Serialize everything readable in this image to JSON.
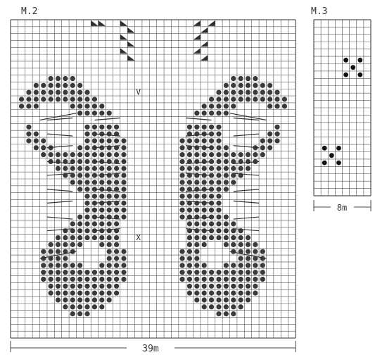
{
  "charts": [
    {
      "label": "M.2",
      "width_label": "39m",
      "columns": 39,
      "rows": 46,
      "dots": [
        [
          5,
          8
        ],
        [
          6,
          8
        ],
        [
          7,
          8
        ],
        [
          8,
          8
        ],
        [
          3,
          9
        ],
        [
          4,
          9
        ],
        [
          5,
          9
        ],
        [
          6,
          9
        ],
        [
          7,
          9
        ],
        [
          8,
          9
        ],
        [
          9,
          9
        ],
        [
          2,
          10
        ],
        [
          3,
          10
        ],
        [
          4,
          10
        ],
        [
          5,
          10
        ],
        [
          6,
          10
        ],
        [
          7,
          10
        ],
        [
          8,
          10
        ],
        [
          9,
          10
        ],
        [
          10,
          10
        ],
        [
          1,
          11
        ],
        [
          2,
          11
        ],
        [
          3,
          11
        ],
        [
          4,
          11
        ],
        [
          5,
          11
        ],
        [
          6,
          11
        ],
        [
          7,
          11
        ],
        [
          8,
          11
        ],
        [
          9,
          11
        ],
        [
          10,
          11
        ],
        [
          11,
          11
        ],
        [
          1,
          12
        ],
        [
          2,
          12
        ],
        [
          3,
          12
        ],
        [
          8,
          12
        ],
        [
          9,
          12
        ],
        [
          10,
          12
        ],
        [
          11,
          12
        ],
        [
          12,
          12
        ],
        [
          9,
          13
        ],
        [
          10,
          13
        ],
        [
          11,
          13
        ],
        [
          12,
          13
        ],
        [
          13,
          13
        ],
        [
          2,
          15
        ],
        [
          10,
          15
        ],
        [
          11,
          15
        ],
        [
          12,
          15
        ],
        [
          13,
          15
        ],
        [
          14,
          15
        ],
        [
          2,
          16
        ],
        [
          3,
          16
        ],
        [
          10,
          16
        ],
        [
          11,
          16
        ],
        [
          12,
          16
        ],
        [
          13,
          16
        ],
        [
          14,
          16
        ],
        [
          2,
          17
        ],
        [
          3,
          17
        ],
        [
          4,
          17
        ],
        [
          10,
          17
        ],
        [
          11,
          17
        ],
        [
          12,
          17
        ],
        [
          13,
          17
        ],
        [
          14,
          17
        ],
        [
          15,
          17
        ],
        [
          3,
          18
        ],
        [
          4,
          18
        ],
        [
          5,
          18
        ],
        [
          9,
          18
        ],
        [
          10,
          18
        ],
        [
          11,
          18
        ],
        [
          12,
          18
        ],
        [
          13,
          18
        ],
        [
          14,
          18
        ],
        [
          15,
          18
        ],
        [
          4,
          19
        ],
        [
          5,
          19
        ],
        [
          6,
          19
        ],
        [
          7,
          19
        ],
        [
          8,
          19
        ],
        [
          9,
          19
        ],
        [
          10,
          19
        ],
        [
          11,
          19
        ],
        [
          12,
          19
        ],
        [
          13,
          19
        ],
        [
          14,
          19
        ],
        [
          15,
          19
        ],
        [
          5,
          20
        ],
        [
          6,
          20
        ],
        [
          7,
          20
        ],
        [
          8,
          20
        ],
        [
          9,
          20
        ],
        [
          10,
          20
        ],
        [
          11,
          20
        ],
        [
          12,
          20
        ],
        [
          13,
          20
        ],
        [
          14,
          20
        ],
        [
          15,
          20
        ],
        [
          6,
          21
        ],
        [
          7,
          21
        ],
        [
          8,
          21
        ],
        [
          9,
          21
        ],
        [
          10,
          21
        ],
        [
          11,
          21
        ],
        [
          12,
          21
        ],
        [
          13,
          21
        ],
        [
          14,
          21
        ],
        [
          15,
          21
        ],
        [
          7,
          22
        ],
        [
          8,
          22
        ],
        [
          9,
          22
        ],
        [
          10,
          22
        ],
        [
          11,
          22
        ],
        [
          12,
          22
        ],
        [
          13,
          22
        ],
        [
          14,
          22
        ],
        [
          15,
          22
        ],
        [
          8,
          23
        ],
        [
          9,
          23
        ],
        [
          10,
          23
        ],
        [
          11,
          23
        ],
        [
          12,
          23
        ],
        [
          13,
          23
        ],
        [
          14,
          23
        ],
        [
          15,
          23
        ],
        [
          9,
          24
        ],
        [
          10,
          24
        ],
        [
          11,
          24
        ],
        [
          12,
          24
        ],
        [
          13,
          24
        ],
        [
          14,
          24
        ],
        [
          15,
          24
        ],
        [
          10,
          25
        ],
        [
          11,
          25
        ],
        [
          12,
          25
        ],
        [
          13,
          25
        ],
        [
          14,
          25
        ],
        [
          15,
          25
        ],
        [
          10,
          26
        ],
        [
          11,
          26
        ],
        [
          12,
          26
        ],
        [
          13,
          26
        ],
        [
          14,
          26
        ],
        [
          15,
          26
        ],
        [
          10,
          27
        ],
        [
          11,
          27
        ],
        [
          12,
          27
        ],
        [
          13,
          27
        ],
        [
          14,
          27
        ],
        [
          15,
          27
        ],
        [
          9,
          28
        ],
        [
          10,
          28
        ],
        [
          11,
          28
        ],
        [
          12,
          28
        ],
        [
          13,
          28
        ],
        [
          14,
          28
        ],
        [
          15,
          28
        ],
        [
          8,
          29
        ],
        [
          9,
          29
        ],
        [
          10,
          29
        ],
        [
          11,
          29
        ],
        [
          12,
          29
        ],
        [
          13,
          29
        ],
        [
          14,
          29
        ],
        [
          7,
          30
        ],
        [
          8,
          30
        ],
        [
          9,
          30
        ],
        [
          10,
          30
        ],
        [
          11,
          30
        ],
        [
          12,
          30
        ],
        [
          13,
          30
        ],
        [
          14,
          30
        ],
        [
          6,
          31
        ],
        [
          7,
          31
        ],
        [
          8,
          31
        ],
        [
          9,
          31
        ],
        [
          10,
          31
        ],
        [
          11,
          31
        ],
        [
          12,
          31
        ],
        [
          13,
          31
        ],
        [
          14,
          31
        ],
        [
          5,
          32
        ],
        [
          6,
          32
        ],
        [
          7,
          32
        ],
        [
          8,
          32
        ],
        [
          9,
          32
        ],
        [
          12,
          32
        ],
        [
          13,
          32
        ],
        [
          14,
          32
        ],
        [
          4,
          33
        ],
        [
          5,
          33
        ],
        [
          6,
          33
        ],
        [
          7,
          33
        ],
        [
          8,
          33
        ],
        [
          13,
          33
        ],
        [
          14,
          33
        ],
        [
          15,
          33
        ],
        [
          4,
          34
        ],
        [
          5,
          34
        ],
        [
          6,
          34
        ],
        [
          7,
          34
        ],
        [
          13,
          34
        ],
        [
          14,
          34
        ],
        [
          15,
          34
        ],
        [
          4,
          35
        ],
        [
          5,
          35
        ],
        [
          6,
          35
        ],
        [
          7,
          35
        ],
        [
          8,
          35
        ],
        [
          9,
          35
        ],
        [
          12,
          35
        ],
        [
          13,
          35
        ],
        [
          14,
          35
        ],
        [
          15,
          35
        ],
        [
          4,
          36
        ],
        [
          5,
          36
        ],
        [
          6,
          36
        ],
        [
          7,
          36
        ],
        [
          8,
          36
        ],
        [
          9,
          36
        ],
        [
          10,
          36
        ],
        [
          11,
          36
        ],
        [
          12,
          36
        ],
        [
          13,
          36
        ],
        [
          14,
          36
        ],
        [
          15,
          36
        ],
        [
          4,
          37
        ],
        [
          5,
          37
        ],
        [
          6,
          37
        ],
        [
          7,
          37
        ],
        [
          8,
          37
        ],
        [
          9,
          37
        ],
        [
          10,
          37
        ],
        [
          11,
          37
        ],
        [
          12,
          37
        ],
        [
          13,
          37
        ],
        [
          14,
          37
        ],
        [
          15,
          37
        ],
        [
          5,
          38
        ],
        [
          6,
          38
        ],
        [
          7,
          38
        ],
        [
          8,
          38
        ],
        [
          9,
          38
        ],
        [
          10,
          38
        ],
        [
          11,
          38
        ],
        [
          12,
          38
        ],
        [
          13,
          38
        ],
        [
          14,
          38
        ],
        [
          5,
          39
        ],
        [
          6,
          39
        ],
        [
          7,
          39
        ],
        [
          8,
          39
        ],
        [
          9,
          39
        ],
        [
          10,
          39
        ],
        [
          11,
          39
        ],
        [
          12,
          39
        ],
        [
          13,
          39
        ],
        [
          14,
          39
        ],
        [
          6,
          40
        ],
        [
          7,
          40
        ],
        [
          8,
          40
        ],
        [
          9,
          40
        ],
        [
          10,
          40
        ],
        [
          11,
          40
        ],
        [
          12,
          40
        ],
        [
          13,
          40
        ],
        [
          7,
          41
        ],
        [
          8,
          41
        ],
        [
          9,
          41
        ],
        [
          10,
          41
        ],
        [
          11,
          41
        ],
        [
          12,
          41
        ],
        [
          8,
          42
        ],
        [
          9,
          42
        ],
        [
          10,
          42
        ]
      ],
      "triangles": [
        [
          11,
          0
        ],
        [
          12,
          0
        ],
        [
          15,
          0
        ],
        [
          16,
          1
        ],
        [
          15,
          2
        ],
        [
          16,
          3
        ],
        [
          15,
          4
        ],
        [
          16,
          5
        ],
        [
          25,
          0
        ],
        [
          27,
          0
        ],
        [
          26,
          1
        ],
        [
          25,
          2
        ],
        [
          26,
          3
        ],
        [
          25,
          4
        ],
        [
          26,
          5
        ]
      ],
      "symbols": [
        {
          "char": "V",
          "col": 17,
          "row": 10
        },
        {
          "char": "X",
          "col": 17,
          "row": 31
        }
      ]
    },
    {
      "label": "M.3",
      "width_label": "8m",
      "columns": 8,
      "rows": 24,
      "dots": [
        [
          4,
          5
        ],
        [
          6,
          5
        ],
        [
          5,
          6
        ],
        [
          4,
          7
        ],
        [
          6,
          7
        ],
        [
          1,
          17
        ],
        [
          3,
          17
        ],
        [
          2,
          18
        ],
        [
          1,
          19
        ],
        [
          3,
          19
        ]
      ]
    }
  ]
}
